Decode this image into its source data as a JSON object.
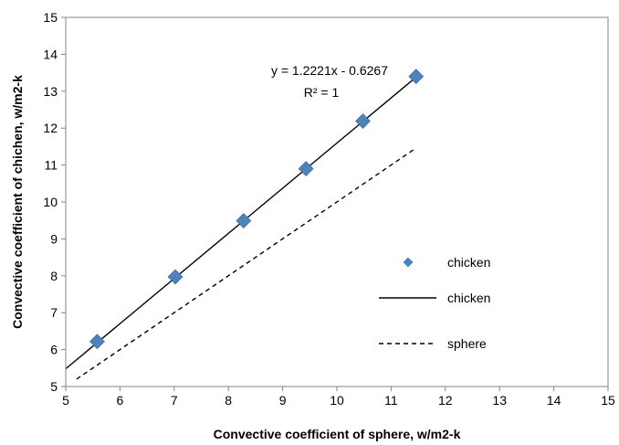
{
  "chart_data": {
    "type": "scatter",
    "xlabel": "Convective coefficient of sphere, w/m2-k",
    "ylabel": "Convective coefficient of chichen, w/m2-k",
    "xlim": [
      5,
      15
    ],
    "ylim": [
      5,
      15
    ],
    "xticks": [
      "5",
      "6",
      "7",
      "8",
      "9",
      "10",
      "11",
      "12",
      "13",
      "14",
      "15"
    ],
    "yticks": [
      "5",
      "6",
      "7",
      "8",
      "9",
      "10",
      "11",
      "12",
      "13",
      "14",
      "15"
    ],
    "grid": false,
    "legend_position": "right",
    "series": [
      {
        "name": "chicken",
        "kind": "markers",
        "marker": "diamond",
        "color": "#4F81BD",
        "x": [
          5.58,
          7.02,
          8.28,
          9.43,
          10.48,
          11.46
        ],
        "y": [
          6.22,
          7.97,
          9.49,
          10.9,
          12.19,
          13.4
        ]
      },
      {
        "name": "chicken",
        "kind": "trendline",
        "line_style": "solid",
        "color": "#000000",
        "x": [
          5.0,
          11.46
        ],
        "y": [
          5.48,
          13.38
        ]
      },
      {
        "name": "sphere",
        "kind": "line",
        "line_style": "dashed",
        "color": "#000000",
        "x": [
          5.2,
          11.46
        ],
        "y": [
          5.2,
          11.46
        ]
      }
    ],
    "annotations": {
      "equation": "y = 1.2221x - 0.6267",
      "r_squared": "R² = 1"
    }
  }
}
